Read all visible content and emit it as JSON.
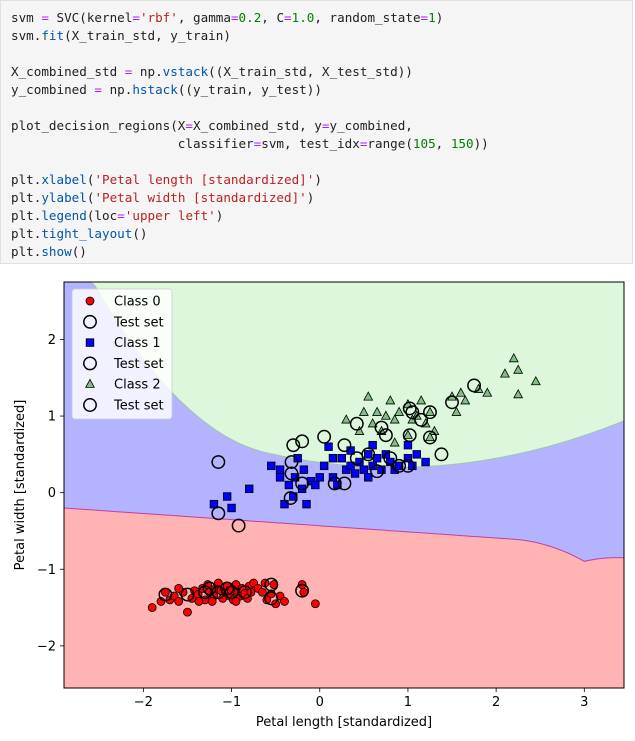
{
  "code": {
    "lines": [
      [
        [
          "svm ",
          ""
        ],
        [
          "=",
          "op"
        ],
        [
          " SVC(kernel",
          ""
        ],
        [
          "=",
          "op"
        ],
        [
          "'rbf'",
          "str"
        ],
        [
          ", gamma",
          ""
        ],
        [
          "=",
          "op"
        ],
        [
          "0.2",
          "num"
        ],
        [
          ", C",
          ""
        ],
        [
          "=",
          "op"
        ],
        [
          "1.0",
          "num"
        ],
        [
          ", random_state",
          ""
        ],
        [
          "=",
          "op"
        ],
        [
          "1",
          "num"
        ],
        [
          ")",
          ""
        ]
      ],
      [
        [
          "svm.",
          ""
        ],
        [
          "fit",
          "fn"
        ],
        [
          "(X_train_std, y_train)",
          ""
        ]
      ],
      [],
      [
        [
          "X_combined_std ",
          ""
        ],
        [
          "=",
          "op"
        ],
        [
          " np.",
          ""
        ],
        [
          "vstack",
          "fn"
        ],
        [
          "((X_train_std, X_test_std))",
          ""
        ]
      ],
      [
        [
          "y_combined ",
          ""
        ],
        [
          "=",
          "op"
        ],
        [
          " np.",
          ""
        ],
        [
          "hstack",
          "fn"
        ],
        [
          "((y_train, y_test))",
          ""
        ]
      ],
      [],
      [
        [
          "plot_decision_regions(X",
          ""
        ],
        [
          "=",
          "op"
        ],
        [
          "X_combined_std, y",
          ""
        ],
        [
          "=",
          "op"
        ],
        [
          "y_combined,",
          ""
        ]
      ],
      [
        [
          "                      classifier",
          ""
        ],
        [
          "=",
          "op"
        ],
        [
          "svm, test_idx",
          ""
        ],
        [
          "=",
          "op"
        ],
        [
          "range(",
          ""
        ],
        [
          "105",
          "num"
        ],
        [
          ", ",
          ""
        ],
        [
          "150",
          "num"
        ],
        [
          "))",
          ""
        ]
      ],
      [],
      [
        [
          "plt.",
          ""
        ],
        [
          "xlabel",
          "fn"
        ],
        [
          "(",
          ""
        ],
        [
          "'Petal length [standardized]'",
          "str"
        ],
        [
          ")",
          ""
        ]
      ],
      [
        [
          "plt.",
          ""
        ],
        [
          "ylabel",
          "fn"
        ],
        [
          "(",
          ""
        ],
        [
          "'Petal width [standardized]'",
          "str"
        ],
        [
          ")",
          ""
        ]
      ],
      [
        [
          "plt.",
          ""
        ],
        [
          "legend",
          "fn"
        ],
        [
          "(loc",
          ""
        ],
        [
          "=",
          "op"
        ],
        [
          "'upper left'",
          "str"
        ],
        [
          ")",
          ""
        ]
      ],
      [
        [
          "plt.",
          ""
        ],
        [
          "tight_layout",
          "fn"
        ],
        [
          "()",
          ""
        ]
      ],
      [
        [
          "plt.",
          ""
        ],
        [
          "show",
          "fn"
        ],
        [
          "()",
          ""
        ]
      ]
    ]
  },
  "chart_data": {
    "type": "scatter",
    "xlabel": "Petal length [standardized]",
    "ylabel": "Petal width [standardized]",
    "xlim": [
      -2.9,
      3.45
    ],
    "ylim": [
      -2.55,
      2.75
    ],
    "xticks": [
      -2,
      -1,
      0,
      1,
      2,
      3
    ],
    "yticks": [
      -2,
      -1,
      0,
      1,
      2
    ],
    "region_colors": {
      "class0": "#ffb3b3",
      "class1": "#b3b3ff",
      "class2": "#dcf7dc"
    },
    "series": [
      {
        "name": "Class 0",
        "marker": "circle",
        "color": "#ff0000",
        "points": [
          [
            -1.9,
            -1.5
          ],
          [
            -1.8,
            -1.42
          ],
          [
            -1.75,
            -1.3
          ],
          [
            -1.7,
            -1.4
          ],
          [
            -1.65,
            -1.35
          ],
          [
            -1.6,
            -1.42
          ],
          [
            -1.55,
            -1.3
          ],
          [
            -1.5,
            -1.56
          ],
          [
            -1.45,
            -1.38
          ],
          [
            -1.42,
            -1.28
          ],
          [
            -1.38,
            -1.33
          ],
          [
            -1.33,
            -1.25
          ],
          [
            -1.3,
            -1.4
          ],
          [
            -1.27,
            -1.2
          ],
          [
            -1.25,
            -1.3
          ],
          [
            -1.2,
            -1.35
          ],
          [
            -1.18,
            -1.25
          ],
          [
            -1.15,
            -1.18
          ],
          [
            -1.12,
            -1.28
          ],
          [
            -1.1,
            -1.38
          ],
          [
            -1.07,
            -1.3
          ],
          [
            -1.05,
            -1.22
          ],
          [
            -1.02,
            -1.35
          ],
          [
            -1.0,
            -1.28
          ],
          [
            -0.98,
            -1.4
          ],
          [
            -0.95,
            -1.2
          ],
          [
            -0.93,
            -1.3
          ],
          [
            -0.9,
            -1.35
          ],
          [
            -0.88,
            -1.25
          ],
          [
            -0.85,
            -1.32
          ],
          [
            -0.82,
            -1.38
          ],
          [
            -0.8,
            -1.22
          ],
          [
            -0.78,
            -1.3
          ],
          [
            -0.75,
            -1.18
          ],
          [
            -0.7,
            -1.25
          ],
          [
            -0.65,
            -1.3
          ],
          [
            -0.6,
            -1.4
          ],
          [
            -0.55,
            -1.32
          ],
          [
            -0.52,
            -1.2
          ],
          [
            -0.5,
            -1.45
          ],
          [
            -0.45,
            -1.35
          ],
          [
            -0.4,
            -1.42
          ],
          [
            -0.2,
            -1.2
          ],
          [
            -0.18,
            -1.3
          ],
          [
            -0.05,
            -1.45
          ],
          [
            -1.22,
            -1.42
          ],
          [
            -0.95,
            -1.42
          ],
          [
            -1.6,
            -1.25
          ],
          [
            -0.62,
            -1.18
          ],
          [
            -1.37,
            -1.42
          ]
        ]
      },
      {
        "name": "Class 1",
        "marker": "square",
        "color": "#0000ff",
        "points": [
          [
            -1.2,
            -0.15
          ],
          [
            -1.05,
            -0.05
          ],
          [
            -1.0,
            -0.2
          ],
          [
            -0.8,
            0.05
          ],
          [
            -0.55,
            0.35
          ],
          [
            -0.45,
            0.3
          ],
          [
            -0.4,
            -0.15
          ],
          [
            -0.35,
            0.1
          ],
          [
            -0.3,
            -0.05
          ],
          [
            -0.28,
            0.2
          ],
          [
            -0.25,
            0.45
          ],
          [
            -0.2,
            0.05
          ],
          [
            -0.18,
            0.3
          ],
          [
            -0.15,
            -0.15
          ],
          [
            -0.1,
            0.15
          ],
          [
            -0.05,
            0.1
          ],
          [
            0.0,
            0.2
          ],
          [
            0.05,
            0.35
          ],
          [
            0.1,
            0.6
          ],
          [
            0.15,
            0.2
          ],
          [
            0.2,
            0.1
          ],
          [
            0.25,
            0.45
          ],
          [
            0.3,
            0.3
          ],
          [
            0.35,
            0.55
          ],
          [
            0.4,
            0.25
          ],
          [
            0.45,
            0.4
          ],
          [
            0.5,
            0.3
          ],
          [
            0.55,
            0.5
          ],
          [
            0.6,
            0.35
          ],
          [
            0.65,
            0.45
          ],
          [
            0.7,
            0.3
          ],
          [
            0.75,
            0.5
          ],
          [
            0.8,
            0.4
          ],
          [
            0.85,
            0.3
          ],
          [
            0.9,
            0.35
          ],
          [
            1.0,
            0.45
          ],
          [
            1.05,
            0.35
          ],
          [
            1.1,
            0.5
          ],
          [
            1.2,
            0.4
          ],
          [
            1.0,
            0.62
          ],
          [
            0.55,
            0.2
          ],
          [
            0.35,
            0.35
          ],
          [
            -0.45,
            0.2
          ],
          [
            0.15,
            0.45
          ],
          [
            0.6,
            0.62
          ]
        ]
      },
      {
        "name": "Class 2",
        "marker": "triangle",
        "color": "#7fbf7f",
        "points": [
          [
            0.3,
            0.95
          ],
          [
            0.45,
            0.8
          ],
          [
            0.5,
            1.05
          ],
          [
            0.55,
            1.25
          ],
          [
            0.6,
            0.9
          ],
          [
            0.65,
            1.05
          ],
          [
            0.7,
            0.8
          ],
          [
            0.75,
            1.0
          ],
          [
            0.8,
            1.2
          ],
          [
            0.85,
            0.95
          ],
          [
            0.9,
            1.05
          ],
          [
            1.0,
            1.15
          ],
          [
            1.05,
            0.95
          ],
          [
            1.1,
            1.0
          ],
          [
            1.15,
            1.2
          ],
          [
            1.2,
            0.9
          ],
          [
            1.25,
            1.05
          ],
          [
            1.3,
            0.8
          ],
          [
            1.5,
            1.25
          ],
          [
            1.55,
            1.05
          ],
          [
            1.6,
            1.3
          ],
          [
            1.65,
            1.2
          ],
          [
            1.8,
            1.35
          ],
          [
            1.9,
            1.3
          ],
          [
            2.1,
            1.55
          ],
          [
            2.2,
            1.75
          ],
          [
            2.25,
            1.6
          ],
          [
            2.25,
            1.28
          ],
          [
            2.45,
            1.45
          ],
          [
            0.85,
            0.65
          ],
          [
            1.0,
            0.75
          ],
          [
            1.25,
            0.72
          ]
        ]
      }
    ],
    "test_set": [
      [
        -1.75,
        -1.33
      ],
      [
        -1.5,
        -1.33
      ],
      [
        -1.3,
        -1.3
      ],
      [
        -1.25,
        -1.25
      ],
      [
        -1.15,
        -1.3
      ],
      [
        -1.05,
        -1.25
      ],
      [
        -1.0,
        -1.3
      ],
      [
        -0.85,
        -1.3
      ],
      [
        -0.55,
        -1.2
      ],
      [
        -0.55,
        -1.38
      ],
      [
        -0.2,
        -1.28
      ],
      [
        -1.15,
        0.4
      ],
      [
        -1.15,
        -0.27
      ],
      [
        -0.92,
        -0.43
      ],
      [
        -0.33,
        -0.07
      ],
      [
        -0.3,
        0.62
      ],
      [
        -0.32,
        0.4
      ],
      [
        -0.32,
        0.25
      ],
      [
        -0.2,
        0.12
      ],
      [
        -0.2,
        0.67
      ],
      [
        0.05,
        0.73
      ],
      [
        0.17,
        0.12
      ],
      [
        0.28,
        0.12
      ],
      [
        0.28,
        0.62
      ],
      [
        0.42,
        0.9
      ],
      [
        0.42,
        0.45
      ],
      [
        0.55,
        0.5
      ],
      [
        0.65,
        0.28
      ],
      [
        0.7,
        0.85
      ],
      [
        0.75,
        0.75
      ],
      [
        0.8,
        0.45
      ],
      [
        0.9,
        0.35
      ],
      [
        1.0,
        0.35
      ],
      [
        1.02,
        1.1
      ],
      [
        1.02,
        0.75
      ],
      [
        1.05,
        1.05
      ],
      [
        1.15,
        0.95
      ],
      [
        1.25,
        1.05
      ],
      [
        1.25,
        0.72
      ],
      [
        1.38,
        0.5
      ],
      [
        1.5,
        1.18
      ],
      [
        1.75,
        1.4
      ]
    ]
  },
  "legend": {
    "placement": "upper left",
    "entries": [
      {
        "label": "Class 0",
        "marker": "circle"
      },
      {
        "label": "Test set",
        "marker": "ring"
      },
      {
        "label": "Class 1",
        "marker": "square"
      },
      {
        "label": "Test set",
        "marker": "ring"
      },
      {
        "label": "Class 2",
        "marker": "triangle"
      },
      {
        "label": "Test set",
        "marker": "ring"
      }
    ]
  }
}
